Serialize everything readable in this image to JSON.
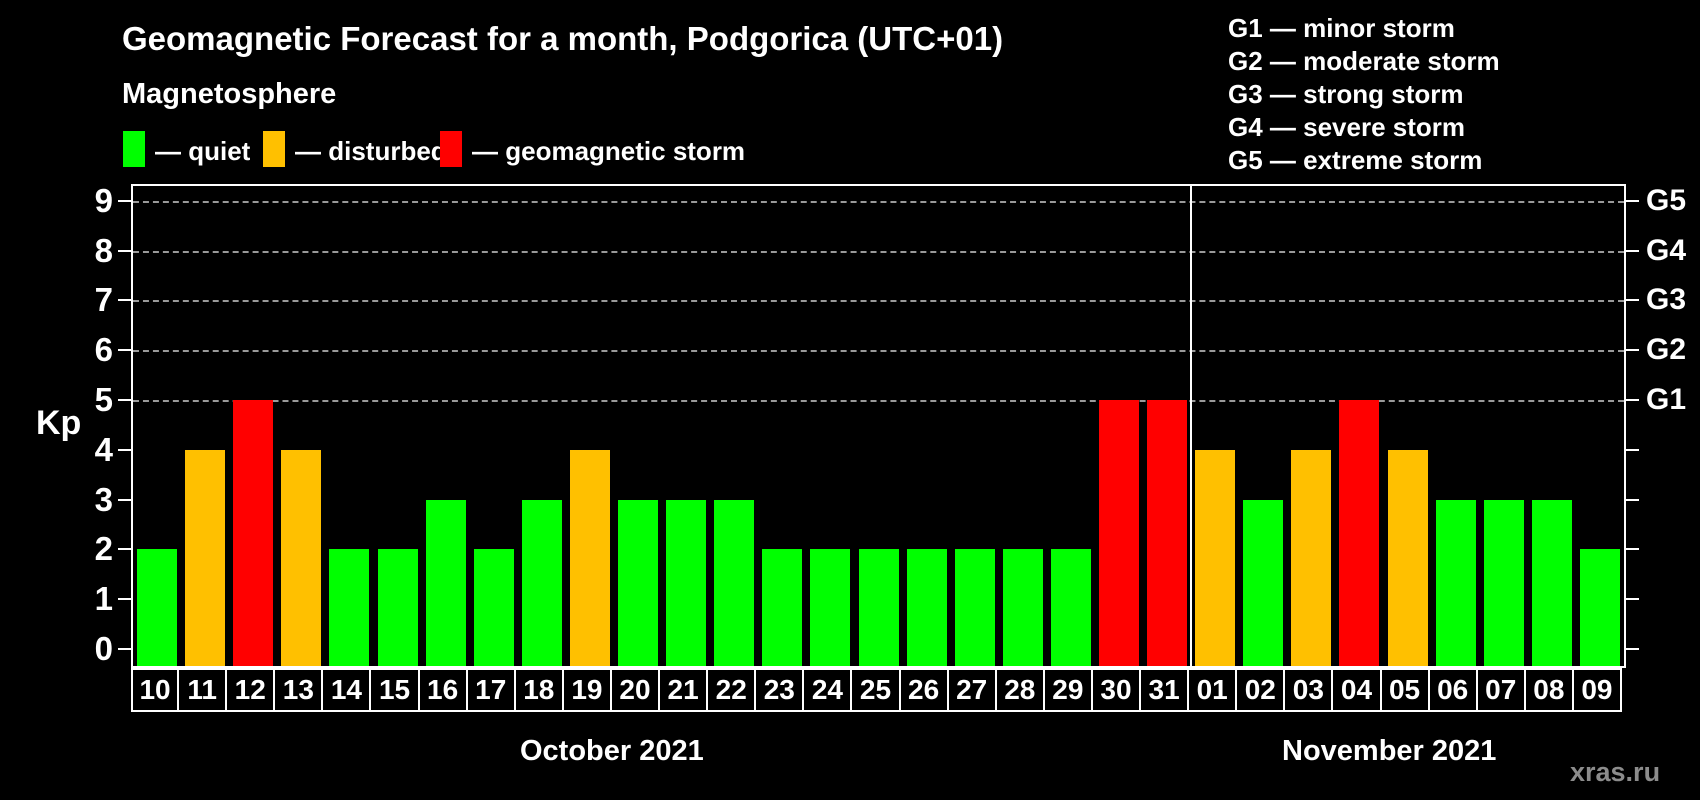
{
  "title": "Geomagnetic Forecast for a month, Podgorica (UTC+01)",
  "subtitle": "Magnetosphere",
  "legend": [
    {
      "id": "quiet",
      "label": "— quiet",
      "color": "#00ff00"
    },
    {
      "id": "disturbed",
      "label": "— disturbed",
      "color": "#ffc000"
    },
    {
      "id": "storm",
      "label": "— geomagnetic storm",
      "color": "#ff0000"
    }
  ],
  "storm_scale_legend": [
    "G1 — minor storm",
    "G2 — moderate storm",
    "G3 — strong storm",
    "G4 — severe storm",
    "G5 — extreme storm"
  ],
  "watermark": "xras.ru",
  "chart_data": {
    "type": "bar",
    "title": "Geomagnetic Forecast for a month, Podgorica (UTC+01)",
    "ylabel": "Kp",
    "ylim": [
      0,
      9
    ],
    "yticks": [
      0,
      1,
      2,
      3,
      4,
      5,
      6,
      7,
      8,
      9
    ],
    "grid_levels": [
      5,
      6,
      7,
      8,
      9
    ],
    "grid_on": true,
    "right_axis": [
      {
        "value": 5,
        "label": "G1"
      },
      {
        "value": 6,
        "label": "G2"
      },
      {
        "value": 7,
        "label": "G3"
      },
      {
        "value": 8,
        "label": "G4"
      },
      {
        "value": 9,
        "label": "G5"
      }
    ],
    "months": [
      {
        "label": "October 2021",
        "days": 22
      },
      {
        "label": "November 2021",
        "days": 9
      }
    ],
    "bars": [
      {
        "day": "10",
        "kp": 2,
        "level": "quiet"
      },
      {
        "day": "11",
        "kp": 4,
        "level": "disturbed"
      },
      {
        "day": "12",
        "kp": 5,
        "level": "storm"
      },
      {
        "day": "13",
        "kp": 4,
        "level": "disturbed"
      },
      {
        "day": "14",
        "kp": 2,
        "level": "quiet"
      },
      {
        "day": "15",
        "kp": 2,
        "level": "quiet"
      },
      {
        "day": "16",
        "kp": 3,
        "level": "quiet"
      },
      {
        "day": "17",
        "kp": 2,
        "level": "quiet"
      },
      {
        "day": "18",
        "kp": 3,
        "level": "quiet"
      },
      {
        "day": "19",
        "kp": 4,
        "level": "disturbed"
      },
      {
        "day": "20",
        "kp": 3,
        "level": "quiet"
      },
      {
        "day": "21",
        "kp": 3,
        "level": "quiet"
      },
      {
        "day": "22",
        "kp": 3,
        "level": "quiet"
      },
      {
        "day": "23",
        "kp": 2,
        "level": "quiet"
      },
      {
        "day": "24",
        "kp": 2,
        "level": "quiet"
      },
      {
        "day": "25",
        "kp": 2,
        "level": "quiet"
      },
      {
        "day": "26",
        "kp": 2,
        "level": "quiet"
      },
      {
        "day": "27",
        "kp": 2,
        "level": "quiet"
      },
      {
        "day": "28",
        "kp": 2,
        "level": "quiet"
      },
      {
        "day": "29",
        "kp": 2,
        "level": "quiet"
      },
      {
        "day": "30",
        "kp": 5,
        "level": "storm"
      },
      {
        "day": "31",
        "kp": 5,
        "level": "storm"
      },
      {
        "day": "01",
        "kp": 4,
        "level": "disturbed"
      },
      {
        "day": "02",
        "kp": 3,
        "level": "quiet"
      },
      {
        "day": "03",
        "kp": 4,
        "level": "disturbed"
      },
      {
        "day": "04",
        "kp": 5,
        "level": "storm"
      },
      {
        "day": "05",
        "kp": 4,
        "level": "disturbed"
      },
      {
        "day": "06",
        "kp": 3,
        "level": "quiet"
      },
      {
        "day": "07",
        "kp": 3,
        "level": "quiet"
      },
      {
        "day": "08",
        "kp": 3,
        "level": "quiet"
      },
      {
        "day": "09",
        "kp": 2,
        "level": "quiet"
      }
    ]
  }
}
